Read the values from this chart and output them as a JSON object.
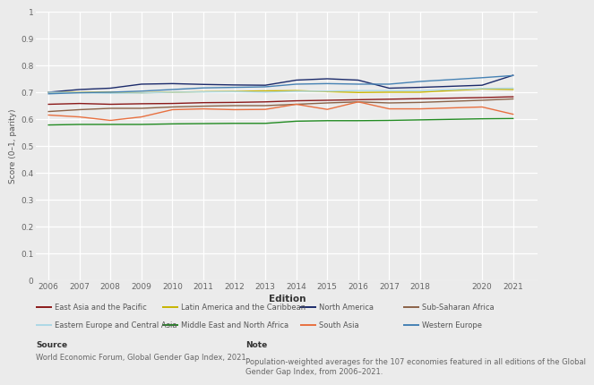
{
  "years": [
    2006,
    2007,
    2008,
    2009,
    2010,
    2011,
    2012,
    2013,
    2014,
    2015,
    2016,
    2017,
    2018,
    2020,
    2021
  ],
  "series": {
    "East Asia and the Pacific": {
      "color": "#8B1A1A",
      "values": [
        0.655,
        0.658,
        0.655,
        0.657,
        0.658,
        0.661,
        0.662,
        0.664,
        0.668,
        0.67,
        0.672,
        0.674,
        0.676,
        0.68,
        0.683
      ]
    },
    "Latin America and the Caribbean": {
      "color": "#C8B400",
      "values": [
        0.7,
        0.699,
        0.7,
        0.698,
        0.7,
        0.702,
        0.703,
        0.705,
        0.706,
        0.702,
        0.699,
        0.7,
        0.7,
        0.712,
        0.71
      ]
    },
    "North America": {
      "color": "#1C2B6B",
      "values": [
        0.7,
        0.71,
        0.715,
        0.73,
        0.732,
        0.729,
        0.727,
        0.726,
        0.745,
        0.75,
        0.745,
        0.715,
        0.718,
        0.726,
        0.763
      ]
    },
    "Sub-Saharan Africa": {
      "color": "#8B6348",
      "values": [
        0.628,
        0.635,
        0.64,
        0.64,
        0.645,
        0.648,
        0.65,
        0.65,
        0.655,
        0.66,
        0.664,
        0.66,
        0.662,
        0.67,
        0.675
      ]
    },
    "Eastern Europe and Central Asia": {
      "color": "#ADD8E6",
      "values": [
        0.7,
        0.698,
        0.696,
        0.697,
        0.7,
        0.701,
        0.702,
        0.7,
        0.703,
        0.704,
        0.706,
        0.706,
        0.706,
        0.714,
        0.715
      ]
    },
    "Middle East and North Africa": {
      "color": "#228B22",
      "values": [
        0.578,
        0.58,
        0.58,
        0.58,
        0.582,
        0.583,
        0.584,
        0.584,
        0.592,
        0.594,
        0.594,
        0.595,
        0.597,
        0.601,
        0.602
      ]
    },
    "South Asia": {
      "color": "#E87040",
      "values": [
        0.615,
        0.608,
        0.595,
        0.608,
        0.635,
        0.638,
        0.635,
        0.636,
        0.655,
        0.636,
        0.664,
        0.638,
        0.638,
        0.645,
        0.618
      ]
    },
    "Western Europe": {
      "color": "#4682B4",
      "values": [
        0.694,
        0.698,
        0.7,
        0.704,
        0.71,
        0.716,
        0.718,
        0.72,
        0.73,
        0.732,
        0.73,
        0.73,
        0.74,
        0.754,
        0.762
      ]
    }
  },
  "xlabel": "Edition",
  "ylabel": "Score (0–1, parity)",
  "ylim": [
    0,
    1
  ],
  "yticks": [
    0,
    0.1,
    0.2,
    0.3,
    0.4,
    0.5,
    0.6,
    0.7,
    0.8,
    0.9,
    1
  ],
  "ytick_labels": [
    "0",
    "0.1",
    "0.2",
    "0.3",
    "0.4",
    "0.5",
    "0.6",
    "0.7",
    "0.8",
    "0.9",
    "1"
  ],
  "bg_color": "#EBEBEB",
  "plot_bg_color": "#EBEBEB",
  "legend_row1": [
    [
      "East Asia and the Pacific",
      "#8B1A1A"
    ],
    [
      "Latin America and the Caribbean",
      "#C8B400"
    ],
    [
      "North America",
      "#1C2B6B"
    ],
    [
      "Sub-Saharan Africa",
      "#8B6348"
    ]
  ],
  "legend_row2": [
    [
      "Eastern Europe and Central Asia",
      "#ADD8E6"
    ],
    [
      "Middle East and North Africa",
      "#228B22"
    ],
    [
      "South Asia",
      "#E87040"
    ],
    [
      "Western Europe",
      "#4682B4"
    ]
  ],
  "source_label": "Source",
  "source_body": "World Economic Forum, Global Gender Gap Index, 2021.",
  "note_label": "Note",
  "note_body": "Population-weighted averages for the 107 economies featured in all editions of the Global\nGender Gap Index, from 2006–2021."
}
